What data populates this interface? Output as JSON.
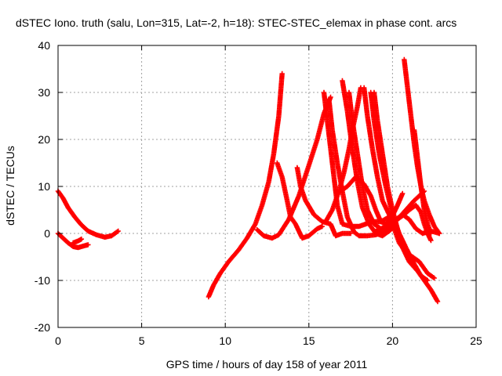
{
  "chart_data": {
    "type": "scatter",
    "title": "dSTEC Iono. truth (salu, Lon=315, Lat=-2, h=18): STEC-STEC_elemax in phase cont. arcs",
    "xlabel": "GPS time / hours of day 158 of year 2011",
    "ylabel": "dSTEC  / TECUs",
    "xlim": [
      0,
      25
    ],
    "ylim": [
      -20,
      40
    ],
    "xticks": [
      0,
      5,
      10,
      15,
      20,
      25
    ],
    "yticks": [
      -20,
      -10,
      0,
      10,
      20,
      30,
      40
    ],
    "grid": true,
    "marker": "+",
    "color": "#ff0000",
    "series": [
      {
        "values": [
          [
            0.0,
            9.0
          ],
          [
            0.3,
            7.5
          ],
          [
            0.6,
            5.5
          ],
          [
            1.0,
            3.5
          ],
          [
            1.4,
            1.8
          ],
          [
            1.8,
            0.5
          ],
          [
            2.3,
            -0.3
          ],
          [
            2.8,
            -0.8
          ],
          [
            3.2,
            -0.5
          ],
          [
            3.6,
            0.5
          ]
        ]
      },
      {
        "values": [
          [
            0.0,
            0.0
          ],
          [
            0.3,
            -1.0
          ],
          [
            0.6,
            -2.0
          ],
          [
            0.9,
            -2.8
          ],
          [
            1.2,
            -3.0
          ],
          [
            1.5,
            -2.7
          ],
          [
            1.8,
            -2.4
          ]
        ]
      },
      {
        "values": [
          [
            0.9,
            -2.0
          ],
          [
            1.2,
            -1.6
          ],
          [
            1.4,
            -1.2
          ]
        ]
      },
      {
        "values": [
          [
            9.0,
            -13.5
          ],
          [
            9.3,
            -11.0
          ],
          [
            9.7,
            -8.5
          ],
          [
            10.2,
            -6.0
          ],
          [
            10.8,
            -3.5
          ],
          [
            11.3,
            -1.0
          ],
          [
            11.8,
            2.0
          ],
          [
            12.2,
            6.0
          ],
          [
            12.6,
            11.0
          ],
          [
            12.9,
            17.0
          ],
          [
            13.2,
            25.0
          ],
          [
            13.4,
            34.0
          ]
        ]
      },
      {
        "values": [
          [
            11.9,
            0.8
          ],
          [
            12.3,
            -0.5
          ],
          [
            12.8,
            -1.0
          ],
          [
            13.2,
            -0.3
          ],
          [
            13.8,
            3.0
          ],
          [
            14.4,
            8.0
          ],
          [
            15.0,
            14.5
          ],
          [
            15.5,
            20.0
          ],
          [
            15.9,
            25.5
          ],
          [
            16.3,
            29.0
          ]
        ]
      },
      {
        "values": [
          [
            13.1,
            15.0
          ],
          [
            13.4,
            12.0
          ],
          [
            13.7,
            7.0
          ],
          [
            13.9,
            3.5
          ],
          [
            14.2,
            2.0
          ],
          [
            14.6,
            -1.0
          ],
          [
            15.0,
            -0.5
          ],
          [
            15.5,
            1.0
          ],
          [
            15.8,
            1.5
          ]
        ]
      },
      {
        "values": [
          [
            14.3,
            14.0
          ],
          [
            14.5,
            10.0
          ],
          [
            14.8,
            7.0
          ],
          [
            15.3,
            4.0
          ],
          [
            15.8,
            2.5
          ],
          [
            16.3,
            2.0
          ],
          [
            16.6,
            -0.5
          ],
          [
            17.0,
            0.0
          ],
          [
            17.5,
            0.0
          ]
        ]
      },
      {
        "values": [
          [
            15.9,
            30.0
          ],
          [
            16.1,
            24.0
          ],
          [
            16.3,
            18.0
          ],
          [
            16.5,
            12.0
          ],
          [
            16.7,
            6.0
          ],
          [
            17.0,
            2.0
          ],
          [
            17.5,
            1.5
          ],
          [
            18.0,
            1.5
          ],
          [
            18.4,
            2.0
          ],
          [
            18.8,
            2.5
          ],
          [
            19.3,
            2.5
          ],
          [
            19.8,
            3.5
          ],
          [
            20.1,
            5.0
          ]
        ]
      },
      {
        "values": [
          [
            16.2,
            28.5
          ],
          [
            16.4,
            22.0
          ],
          [
            16.7,
            15.0
          ],
          [
            17.0,
            9.0
          ],
          [
            17.3,
            3.5
          ],
          [
            17.7,
            0.3
          ],
          [
            18.0,
            -0.5
          ],
          [
            18.5,
            -0.5
          ],
          [
            19.0,
            -0.3
          ],
          [
            19.5,
            0.5
          ],
          [
            19.8,
            1.5
          ]
        ]
      },
      {
        "values": [
          [
            16.0,
            2.5
          ],
          [
            16.4,
            5.0
          ],
          [
            16.8,
            9.0
          ],
          [
            17.1,
            13.0
          ],
          [
            17.4,
            18.0
          ],
          [
            17.6,
            22.0
          ],
          [
            17.9,
            27.0
          ],
          [
            18.1,
            31.0
          ]
        ]
      },
      {
        "values": [
          [
            17.0,
            32.5
          ],
          [
            17.3,
            26.0
          ],
          [
            17.6,
            18.0
          ],
          [
            17.9,
            11.0
          ],
          [
            18.2,
            5.5
          ],
          [
            18.6,
            2.0
          ],
          [
            19.0,
            0.0
          ],
          [
            19.4,
            -0.5
          ],
          [
            19.8,
            0.5
          ],
          [
            20.1,
            1.5
          ]
        ]
      },
      {
        "values": [
          [
            17.4,
            30.0
          ],
          [
            17.6,
            24.0
          ],
          [
            17.9,
            17.0
          ],
          [
            18.2,
            10.0
          ],
          [
            18.5,
            5.0
          ],
          [
            18.9,
            2.0
          ],
          [
            19.3,
            1.0
          ],
          [
            19.8,
            1.5
          ],
          [
            20.3,
            3.0
          ],
          [
            20.8,
            5.0
          ],
          [
            21.3,
            7.0
          ],
          [
            21.9,
            9.0
          ]
        ]
      },
      {
        "values": [
          [
            18.3,
            31.0
          ],
          [
            18.5,
            25.0
          ],
          [
            18.8,
            18.0
          ],
          [
            19.1,
            12.0
          ],
          [
            19.4,
            7.0
          ],
          [
            19.8,
            4.0
          ],
          [
            20.1,
            1.0
          ],
          [
            20.4,
            -2.0
          ],
          [
            20.8,
            -4.0
          ],
          [
            21.2,
            -5.0
          ],
          [
            21.6,
            -6.0
          ],
          [
            22.1,
            -8.5
          ],
          [
            22.5,
            -9.5
          ]
        ]
      },
      {
        "values": [
          [
            18.7,
            30.0
          ],
          [
            18.9,
            24.0
          ],
          [
            19.2,
            17.0
          ],
          [
            19.6,
            10.0
          ],
          [
            20.0,
            4.0
          ],
          [
            20.4,
            0.0
          ],
          [
            20.8,
            -3.0
          ],
          [
            21.3,
            -6.5
          ],
          [
            21.7,
            -9.0
          ],
          [
            22.1,
            -10.0
          ]
        ]
      },
      {
        "values": [
          [
            18.9,
            30.0
          ],
          [
            19.1,
            24.0
          ],
          [
            19.4,
            17.0
          ],
          [
            19.7,
            10.0
          ],
          [
            20.0,
            5.0
          ],
          [
            20.3,
            1.0
          ],
          [
            20.6,
            -3.0
          ],
          [
            21.0,
            -6.0
          ],
          [
            21.5,
            -8.0
          ],
          [
            21.9,
            -10.0
          ],
          [
            22.3,
            -12.0
          ],
          [
            22.7,
            -14.5
          ]
        ]
      },
      {
        "values": [
          [
            16.7,
            8.5
          ],
          [
            17.3,
            10.0
          ],
          [
            17.8,
            12.0
          ],
          [
            18.3,
            10.5
          ],
          [
            18.7,
            8.0
          ],
          [
            19.0,
            5.0
          ],
          [
            19.3,
            2.5
          ],
          [
            19.6,
            2.0
          ],
          [
            19.9,
            3.0
          ],
          [
            20.3,
            6.0
          ],
          [
            20.6,
            8.5
          ]
        ]
      },
      {
        "values": [
          [
            19.0,
            0.5
          ],
          [
            19.6,
            1.5
          ],
          [
            20.2,
            3.0
          ],
          [
            20.6,
            4.0
          ],
          [
            21.0,
            3.0
          ],
          [
            21.4,
            1.0
          ],
          [
            21.8,
            0.0
          ],
          [
            22.3,
            0.5
          ],
          [
            22.8,
            0.0
          ]
        ]
      },
      {
        "values": [
          [
            20.7,
            37.0
          ],
          [
            20.9,
            31.0
          ],
          [
            21.1,
            25.0
          ],
          [
            21.3,
            19.0
          ],
          [
            21.5,
            14.0
          ],
          [
            21.7,
            10.0
          ],
          [
            21.9,
            7.0
          ],
          [
            22.2,
            4.0
          ],
          [
            22.5,
            1.5
          ],
          [
            22.8,
            0.0
          ]
        ]
      },
      {
        "values": [
          [
            21.3,
            22.0
          ],
          [
            21.5,
            16.0
          ],
          [
            21.7,
            10.0
          ],
          [
            21.9,
            5.0
          ],
          [
            22.1,
            2.0
          ],
          [
            22.3,
            0.0
          ]
        ]
      },
      {
        "values": [
          [
            20.3,
            3.0
          ],
          [
            20.7,
            4.0
          ],
          [
            21.0,
            5.0
          ],
          [
            21.4,
            6.0
          ],
          [
            21.7,
            4.5
          ],
          [
            21.9,
            2.0
          ],
          [
            22.1,
            0.0
          ],
          [
            22.3,
            -1.5
          ]
        ]
      }
    ]
  }
}
